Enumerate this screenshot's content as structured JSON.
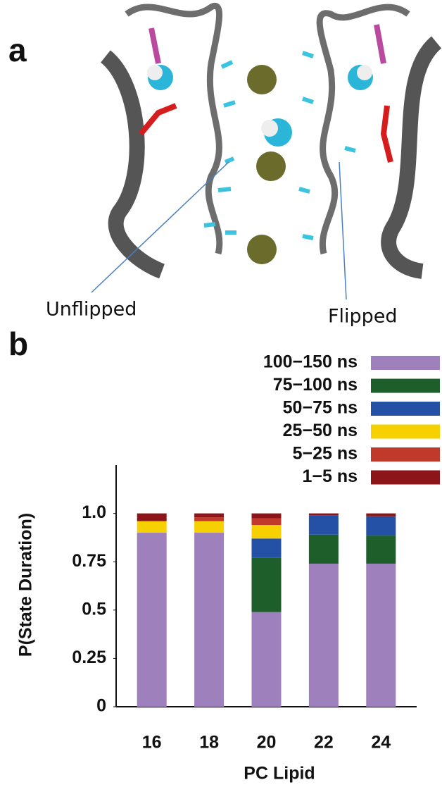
{
  "panel_a": {
    "label": "a",
    "annotations": [
      "Unflipped",
      "Flipped"
    ]
  },
  "panel_b": {
    "label": "b"
  },
  "chart_data": {
    "type": "stacked-bar",
    "xlabel": "PC Lipid",
    "ylabel": "P(State Duration)",
    "categories": [
      "16",
      "18",
      "20",
      "22",
      "24"
    ],
    "ylim": [
      0,
      1.25
    ],
    "yticks": [
      0,
      0.25,
      0.5,
      0.75,
      {
        "value": 1,
        "label": "1.0"
      }
    ],
    "legend": "top-right",
    "series": [
      {
        "name": "100−150 ns",
        "color": "#9e80bd",
        "values": [
          0.9,
          0.9,
          0.49,
          0.74,
          0.74
        ]
      },
      {
        "name": "75−100 ns",
        "color": "#1d5e2b",
        "values": [
          0,
          0,
          0.28,
          0.15,
          0.145
        ]
      },
      {
        "name": "50−75 ns",
        "color": "#2451a6",
        "values": [
          0,
          0,
          0.1,
          0.1,
          0.1
        ]
      },
      {
        "name": "25−50 ns",
        "color": "#f6d000",
        "values": [
          0.06,
          0.06,
          0.07,
          0,
          0
        ]
      },
      {
        "name": "5−25 ns",
        "color": "#c0392b",
        "values": [
          0,
          0.02,
          0.035,
          0,
          0
        ]
      },
      {
        "name": "1−5 ns",
        "color": "#8b1518",
        "values": [
          0.04,
          0.02,
          0.025,
          0.01,
          0.015
        ]
      }
    ]
  }
}
